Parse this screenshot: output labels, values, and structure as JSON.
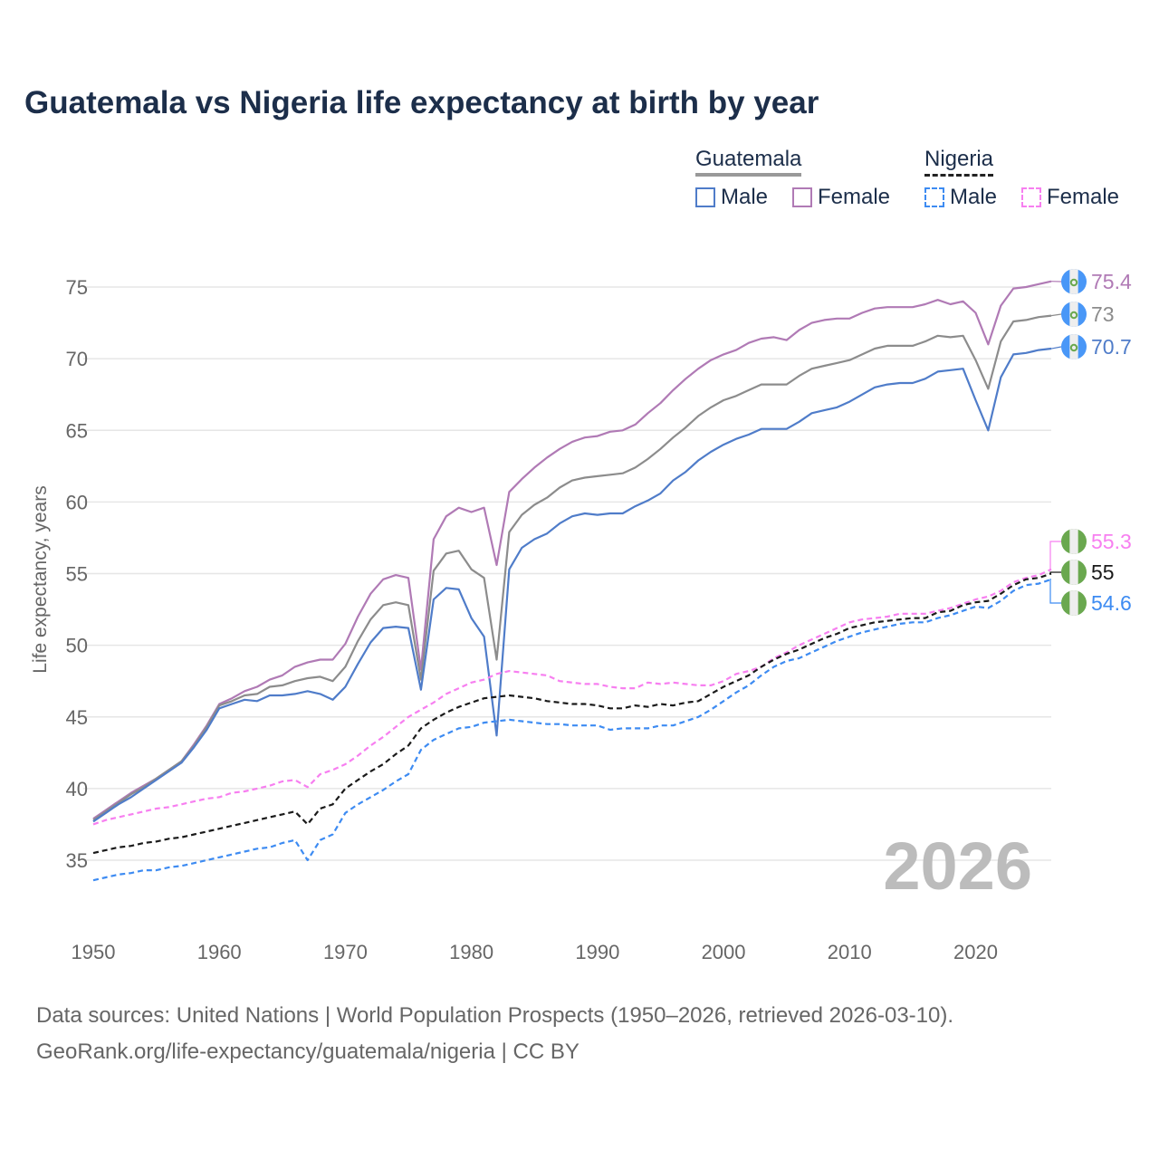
{
  "chart_data": {
    "type": "line",
    "title": "Guatemala vs Nigeria life expectancy at birth by year",
    "xlabel": "",
    "ylabel": "Life expectancy, years",
    "xlim": [
      1950,
      2026
    ],
    "ylim": [
      31,
      77
    ],
    "yticks": [
      35,
      40,
      45,
      50,
      55,
      60,
      65,
      70,
      75
    ],
    "xticks": [
      1950,
      1960,
      1970,
      1980,
      1990,
      2000,
      2010,
      2020
    ],
    "grid": true,
    "watermark": "2026",
    "x_start": 1950,
    "legend": {
      "placement": "top-right",
      "groups": [
        {
          "name": "Guatemala",
          "items": [
            "Male",
            "Female"
          ]
        },
        {
          "name": "Nigeria",
          "items": [
            "Male",
            "Female"
          ]
        }
      ]
    },
    "series": [
      {
        "name": "Guatemala Female",
        "color": "#b07ab5",
        "dashed": false,
        "end_label": "75.4",
        "values": [
          37.9,
          38.5,
          39.1,
          39.7,
          40.2,
          40.7,
          41.3,
          41.9,
          43.1,
          44.4,
          45.9,
          46.3,
          46.8,
          47.1,
          47.6,
          47.9,
          48.5,
          48.8,
          49.0,
          49.0,
          50.1,
          52.0,
          53.6,
          54.6,
          54.9,
          54.7,
          48.3,
          57.4,
          59.0,
          59.6,
          59.3,
          59.6,
          55.6,
          60.7,
          61.6,
          62.4,
          63.1,
          63.7,
          64.2,
          64.5,
          64.6,
          64.9,
          65.0,
          65.4,
          66.2,
          66.9,
          67.8,
          68.6,
          69.3,
          69.9,
          70.3,
          70.6,
          71.1,
          71.4,
          71.5,
          71.3,
          72.0,
          72.5,
          72.7,
          72.8,
          72.8,
          73.2,
          73.5,
          73.6,
          73.6,
          73.6,
          73.8,
          74.1,
          73.8,
          74.0,
          73.2,
          71.0,
          73.7,
          74.9,
          75.0,
          75.2,
          75.4
        ]
      },
      {
        "name": "Guatemala",
        "color": "#8c8c8c",
        "dashed": false,
        "end_label": "73",
        "values": [
          37.8,
          38.4,
          39.0,
          39.6,
          40.1,
          40.7,
          41.3,
          41.9,
          43.0,
          44.3,
          45.8,
          46.1,
          46.5,
          46.6,
          47.1,
          47.2,
          47.5,
          47.7,
          47.8,
          47.5,
          48.5,
          50.3,
          51.8,
          52.8,
          53.0,
          52.8,
          47.6,
          55.2,
          56.4,
          56.6,
          55.3,
          54.7,
          49.0,
          57.9,
          59.1,
          59.8,
          60.3,
          61.0,
          61.5,
          61.7,
          61.8,
          61.9,
          62.0,
          62.4,
          63.0,
          63.7,
          64.5,
          65.2,
          66.0,
          66.6,
          67.1,
          67.4,
          67.8,
          68.2,
          68.2,
          68.2,
          68.8,
          69.3,
          69.5,
          69.7,
          69.9,
          70.3,
          70.7,
          70.9,
          70.9,
          70.9,
          71.2,
          71.6,
          71.5,
          71.6,
          69.9,
          67.9,
          71.2,
          72.6,
          72.7,
          72.9,
          73.0
        ]
      },
      {
        "name": "Guatemala Male",
        "color": "#4f7cc9",
        "dashed": false,
        "end_label": "70.7",
        "values": [
          37.7,
          38.3,
          38.9,
          39.4,
          40.0,
          40.6,
          41.2,
          41.8,
          42.9,
          44.1,
          45.6,
          45.9,
          46.2,
          46.1,
          46.5,
          46.5,
          46.6,
          46.8,
          46.6,
          46.2,
          47.1,
          48.7,
          50.2,
          51.2,
          51.3,
          51.2,
          46.9,
          53.2,
          54.0,
          53.9,
          51.9,
          50.6,
          43.7,
          55.3,
          56.8,
          57.4,
          57.8,
          58.5,
          59.0,
          59.2,
          59.1,
          59.2,
          59.2,
          59.7,
          60.1,
          60.6,
          61.5,
          62.1,
          62.9,
          63.5,
          64.0,
          64.4,
          64.7,
          65.1,
          65.1,
          65.1,
          65.6,
          66.2,
          66.4,
          66.6,
          67.0,
          67.5,
          68.0,
          68.2,
          68.3,
          68.3,
          68.6,
          69.1,
          69.2,
          69.3,
          67.1,
          65.0,
          68.7,
          70.3,
          70.4,
          70.6,
          70.7
        ]
      },
      {
        "name": "Nigeria Female",
        "color": "#f77ff0",
        "dashed": true,
        "end_label": "55.3",
        "values": [
          37.5,
          37.8,
          38.0,
          38.2,
          38.4,
          38.6,
          38.7,
          38.9,
          39.1,
          39.3,
          39.4,
          39.7,
          39.8,
          40.0,
          40.2,
          40.5,
          40.6,
          40.1,
          41.0,
          41.3,
          41.7,
          42.3,
          43.0,
          43.6,
          44.3,
          45.0,
          45.5,
          46.0,
          46.6,
          47.0,
          47.4,
          47.6,
          48.0,
          48.2,
          48.1,
          48.0,
          47.9,
          47.5,
          47.4,
          47.3,
          47.3,
          47.1,
          47.0,
          47.0,
          47.4,
          47.3,
          47.4,
          47.3,
          47.2,
          47.2,
          47.5,
          48.0,
          48.2,
          48.5,
          49.1,
          49.5,
          50.0,
          50.4,
          50.8,
          51.2,
          51.6,
          51.8,
          51.9,
          52.0,
          52.2,
          52.2,
          52.2,
          52.4,
          52.6,
          52.9,
          53.2,
          53.4,
          53.8,
          54.4,
          54.7,
          54.9,
          55.3
        ]
      },
      {
        "name": "Nigeria",
        "color": "#1a1a1a",
        "dashed": true,
        "end_label": "55",
        "values": [
          35.5,
          35.7,
          35.9,
          36.0,
          36.2,
          36.3,
          36.5,
          36.6,
          36.8,
          37.0,
          37.2,
          37.4,
          37.6,
          37.8,
          38.0,
          38.2,
          38.4,
          37.5,
          38.6,
          38.9,
          40.0,
          40.6,
          41.2,
          41.7,
          42.4,
          43.0,
          44.2,
          44.8,
          45.3,
          45.7,
          46.0,
          46.3,
          46.4,
          46.5,
          46.4,
          46.3,
          46.1,
          46.0,
          45.9,
          45.9,
          45.8,
          45.6,
          45.6,
          45.8,
          45.7,
          45.9,
          45.8,
          46.0,
          46.1,
          46.6,
          47.1,
          47.5,
          47.9,
          48.5,
          49.0,
          49.4,
          49.7,
          50.1,
          50.5,
          50.8,
          51.2,
          51.4,
          51.6,
          51.7,
          51.8,
          51.9,
          51.9,
          52.3,
          52.4,
          52.8,
          53.0,
          53.1,
          53.6,
          54.2,
          54.6,
          54.7,
          55.0
        ]
      },
      {
        "name": "Nigeria Male",
        "color": "#3d8bf2",
        "dashed": true,
        "end_label": "54.6",
        "values": [
          33.6,
          33.8,
          34.0,
          34.1,
          34.3,
          34.3,
          34.5,
          34.6,
          34.8,
          35.0,
          35.2,
          35.4,
          35.6,
          35.8,
          35.9,
          36.2,
          36.4,
          35.0,
          36.4,
          36.8,
          38.3,
          38.9,
          39.4,
          39.9,
          40.5,
          41.0,
          42.7,
          43.4,
          43.8,
          44.2,
          44.3,
          44.6,
          44.7,
          44.8,
          44.7,
          44.6,
          44.5,
          44.5,
          44.4,
          44.4,
          44.4,
          44.1,
          44.2,
          44.2,
          44.2,
          44.4,
          44.4,
          44.7,
          45.0,
          45.5,
          46.1,
          46.7,
          47.2,
          47.9,
          48.5,
          48.9,
          49.1,
          49.5,
          49.9,
          50.3,
          50.6,
          50.9,
          51.1,
          51.3,
          51.5,
          51.6,
          51.6,
          51.9,
          52.1,
          52.4,
          52.7,
          52.6,
          53.1,
          53.8,
          54.2,
          54.3,
          54.6
        ]
      }
    ]
  },
  "legend": {
    "guatemala": "Guatemala",
    "nigeria": "Nigeria",
    "male": "Male",
    "female": "Female"
  },
  "colors": {
    "title": "#1c2e4a",
    "guatemala_flag_blue": "#4997f7",
    "nigeria_flag_green": "#6aa84f"
  },
  "footer": {
    "line1": "Data sources: United Nations | World Population Prospects (1950–2026, retrieved 2026-03-10).",
    "line2": "GeoRank.org/life-expectancy/guatemala/nigeria | CC BY"
  }
}
